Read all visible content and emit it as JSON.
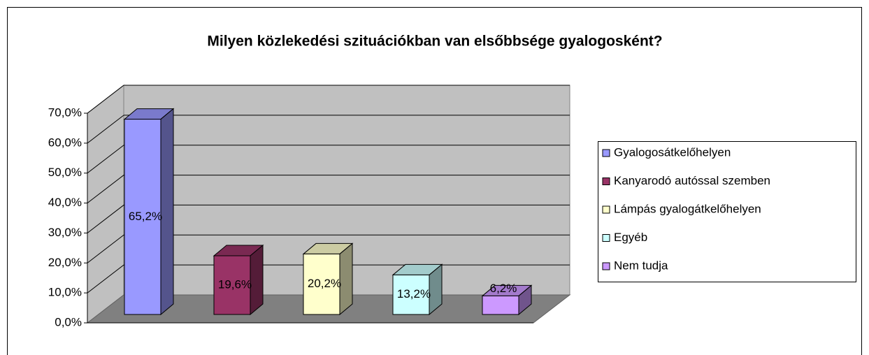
{
  "chart_data": {
    "type": "bar3d",
    "title": "Milyen közlekedési szituációkban van elsőbbsége gyalogosként?",
    "series": [
      {
        "name": "Gyalogosátkelőhelyen",
        "color": "#9999ff",
        "values": [
          65.2
        ],
        "value_labels": [
          "65,2%"
        ]
      },
      {
        "name": "Kanyarodó autóssal szemben",
        "color": "#993366",
        "values": [
          19.6
        ],
        "value_labels": [
          "19,6%"
        ]
      },
      {
        "name": "Lámpás gyalogátkelőhelyen",
        "color": "#ffffcc",
        "values": [
          20.2
        ],
        "value_labels": [
          "20,2%"
        ]
      },
      {
        "name": "Egyéb",
        "color": "#ccffff",
        "values": [
          13.2
        ],
        "value_labels": [
          "13,2%"
        ]
      },
      {
        "name": "Nem tudja",
        "color": "#cc99ff",
        "values": [
          6.2
        ],
        "value_labels": [
          "6,2%"
        ]
      }
    ],
    "ylim": [
      0,
      70
    ],
    "yticks": [
      {
        "value": 0,
        "label": "0,0%"
      },
      {
        "value": 10,
        "label": "10,0%"
      },
      {
        "value": 20,
        "label": "20,0%"
      },
      {
        "value": 30,
        "label": "30,0%"
      },
      {
        "value": 40,
        "label": "40,0%"
      },
      {
        "value": 50,
        "label": "50,0%"
      },
      {
        "value": 60,
        "label": "60,0%"
      },
      {
        "value": 70,
        "label": "70,0%"
      }
    ],
    "grid": true,
    "legend": "right"
  }
}
